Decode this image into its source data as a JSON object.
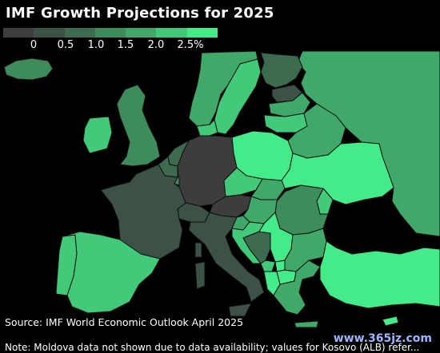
{
  "title": "IMF Growth Projections for 2025",
  "legend": {
    "ticks": [
      "0",
      "0.5",
      "1.0",
      "1.5",
      "2.0",
      "2.5%"
    ],
    "colors": [
      "#3d3d3d",
      "#3c5246",
      "#3c6b4f",
      "#3e8b5c",
      "#40a96a",
      "#42c979",
      "#44ec89"
    ]
  },
  "map": {
    "sea_color": "#000000",
    "border_color": "#0f0f0f",
    "countries": [
      {
        "id": "iceland",
        "name": "Iceland",
        "color": "#3e8b5c"
      },
      {
        "id": "ireland",
        "name": "Ireland",
        "color": "#42c979"
      },
      {
        "id": "uk",
        "name": "United Kingdom",
        "color": "#3e8b5c"
      },
      {
        "id": "norway",
        "name": "Norway",
        "color": "#40a96a"
      },
      {
        "id": "sweden",
        "name": "Sweden",
        "color": "#42c979"
      },
      {
        "id": "finland",
        "name": "Finland",
        "color": "#3c6b4f"
      },
      {
        "id": "denmark",
        "name": "Denmark",
        "color": "#42c979"
      },
      {
        "id": "estonia",
        "name": "Estonia",
        "color": "#3c5246"
      },
      {
        "id": "latvia",
        "name": "Latvia",
        "color": "#40a96a"
      },
      {
        "id": "lithuania",
        "name": "Lithuania",
        "color": "#42c979"
      },
      {
        "id": "russia",
        "name": "Russia",
        "color": "#40a96a"
      },
      {
        "id": "belarus",
        "name": "Belarus",
        "color": "#40a96a"
      },
      {
        "id": "poland",
        "name": "Poland",
        "color": "#44ec89"
      },
      {
        "id": "ukraine",
        "name": "Ukraine",
        "color": "#44ec89"
      },
      {
        "id": "moldova",
        "name": "Moldova",
        "color": "#42c979"
      },
      {
        "id": "romania",
        "name": "Romania",
        "color": "#3e8b5c"
      },
      {
        "id": "netherlands",
        "name": "Netherlands",
        "color": "#3c6b4f"
      },
      {
        "id": "belgium",
        "name": "Belgium",
        "color": "#3c6b4f"
      },
      {
        "id": "luxembourg",
        "name": "Luxembourg",
        "color": "#3e8b5c"
      },
      {
        "id": "germany",
        "name": "Germany",
        "color": "#3d3d3d"
      },
      {
        "id": "czechia",
        "name": "Czechia",
        "color": "#42c979"
      },
      {
        "id": "slovakia",
        "name": "Slovakia",
        "color": "#40a96a"
      },
      {
        "id": "hungary",
        "name": "Hungary",
        "color": "#40a96a"
      },
      {
        "id": "austria",
        "name": "Austria",
        "color": "#3d3d3d"
      },
      {
        "id": "switzerland",
        "name": "Switzerland",
        "color": "#3c5246"
      },
      {
        "id": "france",
        "name": "France",
        "color": "#3c5246"
      },
      {
        "id": "spain",
        "name": "Spain",
        "color": "#42c979"
      },
      {
        "id": "portugal",
        "name": "Portugal",
        "color": "#42c979"
      },
      {
        "id": "italy",
        "name": "Italy",
        "color": "#3c5246"
      },
      {
        "id": "slovenia",
        "name": "Slovenia",
        "color": "#40a96a"
      },
      {
        "id": "croatia",
        "name": "Croatia",
        "color": "#42c979"
      },
      {
        "id": "bosnia",
        "name": "Bosnia and Herzegovina",
        "color": "#3c6b4f"
      },
      {
        "id": "serbia",
        "name": "Serbia",
        "color": "#44ec89"
      },
      {
        "id": "montenegro",
        "name": "Montenegro",
        "color": "#42c979"
      },
      {
        "id": "albania",
        "name": "Albania",
        "color": "#44ec89"
      },
      {
        "id": "north_macedonia",
        "name": "North Macedonia",
        "color": "#44ec89"
      },
      {
        "id": "kosovo",
        "name": "Kosovo",
        "color": "#44ec89"
      },
      {
        "id": "bulgaria",
        "name": "Bulgaria",
        "color": "#40a96a"
      },
      {
        "id": "greece",
        "name": "Greece",
        "color": "#40a96a"
      },
      {
        "id": "turkey",
        "name": "Turkey",
        "color": "#44ec89"
      },
      {
        "id": "cyprus",
        "name": "Cyprus",
        "color": "#44ec89"
      }
    ]
  },
  "source": "Source: IMF World Economic Outlook April 2025",
  "note": "Note: Moldova data not shown due to data availability; values for Kosovo (ALB) refer...",
  "watermark": "www.365jz.com"
}
